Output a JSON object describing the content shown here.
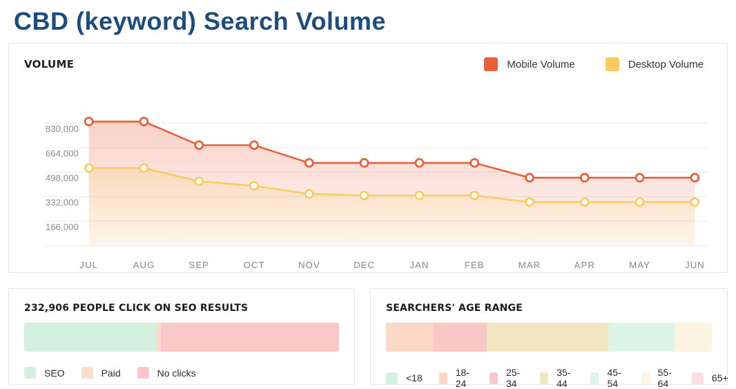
{
  "page_title": "CBD (keyword) Search Volume",
  "cards": {
    "volume": {
      "title": "VOLUME"
    },
    "seo": {
      "title": "232,906 PEOPLE CLICK ON SEO RESULTS"
    },
    "age": {
      "title": "SEARCHERS' AGE RANGE"
    }
  },
  "chart_data": [
    {
      "id": "volume-trend",
      "type": "area",
      "title": "VOLUME",
      "x": [
        "JUL",
        "AUG",
        "SEP",
        "OCT",
        "NOV",
        "DEC",
        "JAN",
        "FEB",
        "MAR",
        "APR",
        "MAY",
        "JUN"
      ],
      "series": [
        {
          "name": "Mobile Volume",
          "color": "#E7603C",
          "values": [
            840000,
            840000,
            680000,
            680000,
            560000,
            560000,
            560000,
            560000,
            460000,
            460000,
            460000,
            460000
          ]
        },
        {
          "name": "Desktop Volume",
          "color": "#F8CC62",
          "values": [
            525000,
            525000,
            435000,
            405000,
            350000,
            340000,
            340000,
            340000,
            295000,
            295000,
            295000,
            295000
          ]
        }
      ],
      "yticks": [
        166000,
        332000,
        498000,
        664000,
        830000
      ],
      "ytick_labels": [
        "166,000",
        "332,000",
        "498,000",
        "664,000",
        "830,000"
      ],
      "ylim": [
        0,
        996000
      ],
      "grid": true,
      "legend_position": "top-right",
      "grid_color": "#efeff2",
      "tick_color": "#8d8d8d"
    },
    {
      "id": "seo-clicks",
      "type": "bar",
      "stacked": true,
      "orientation": "horizontal",
      "title": "232,906 PEOPLE CLICK ON SEO RESULTS",
      "segments": [
        {
          "label": "SEO",
          "color": "#D5F0DF",
          "percent": 42.2
        },
        {
          "label": "Paid",
          "color": "#FBDDCB",
          "percent": 1.3
        },
        {
          "label": "No clicks",
          "color": "#F8C9C7",
          "percent": 56.5
        }
      ]
    },
    {
      "id": "age-range",
      "type": "bar",
      "stacked": true,
      "orientation": "horizontal",
      "title": "SEARCHERS' AGE RANGE",
      "segments": [
        {
          "label": "<18",
          "color": "#D4F0DE",
          "percent": 0
        },
        {
          "label": "18-24",
          "color": "#FBD9C6",
          "percent": 14.7
        },
        {
          "label": "25-34",
          "color": "#F8C8C6",
          "percent": 16.2
        },
        {
          "label": "35-44",
          "color": "#F0E7C2",
          "percent": 37.3
        },
        {
          "label": "45-54",
          "color": "#DDF5E8",
          "percent": 20.4
        },
        {
          "label": "55-64",
          "color": "#FCF4E0",
          "percent": 11.4
        },
        {
          "label": "65+",
          "color": "#FBDFE0",
          "percent": 0
        }
      ]
    }
  ]
}
